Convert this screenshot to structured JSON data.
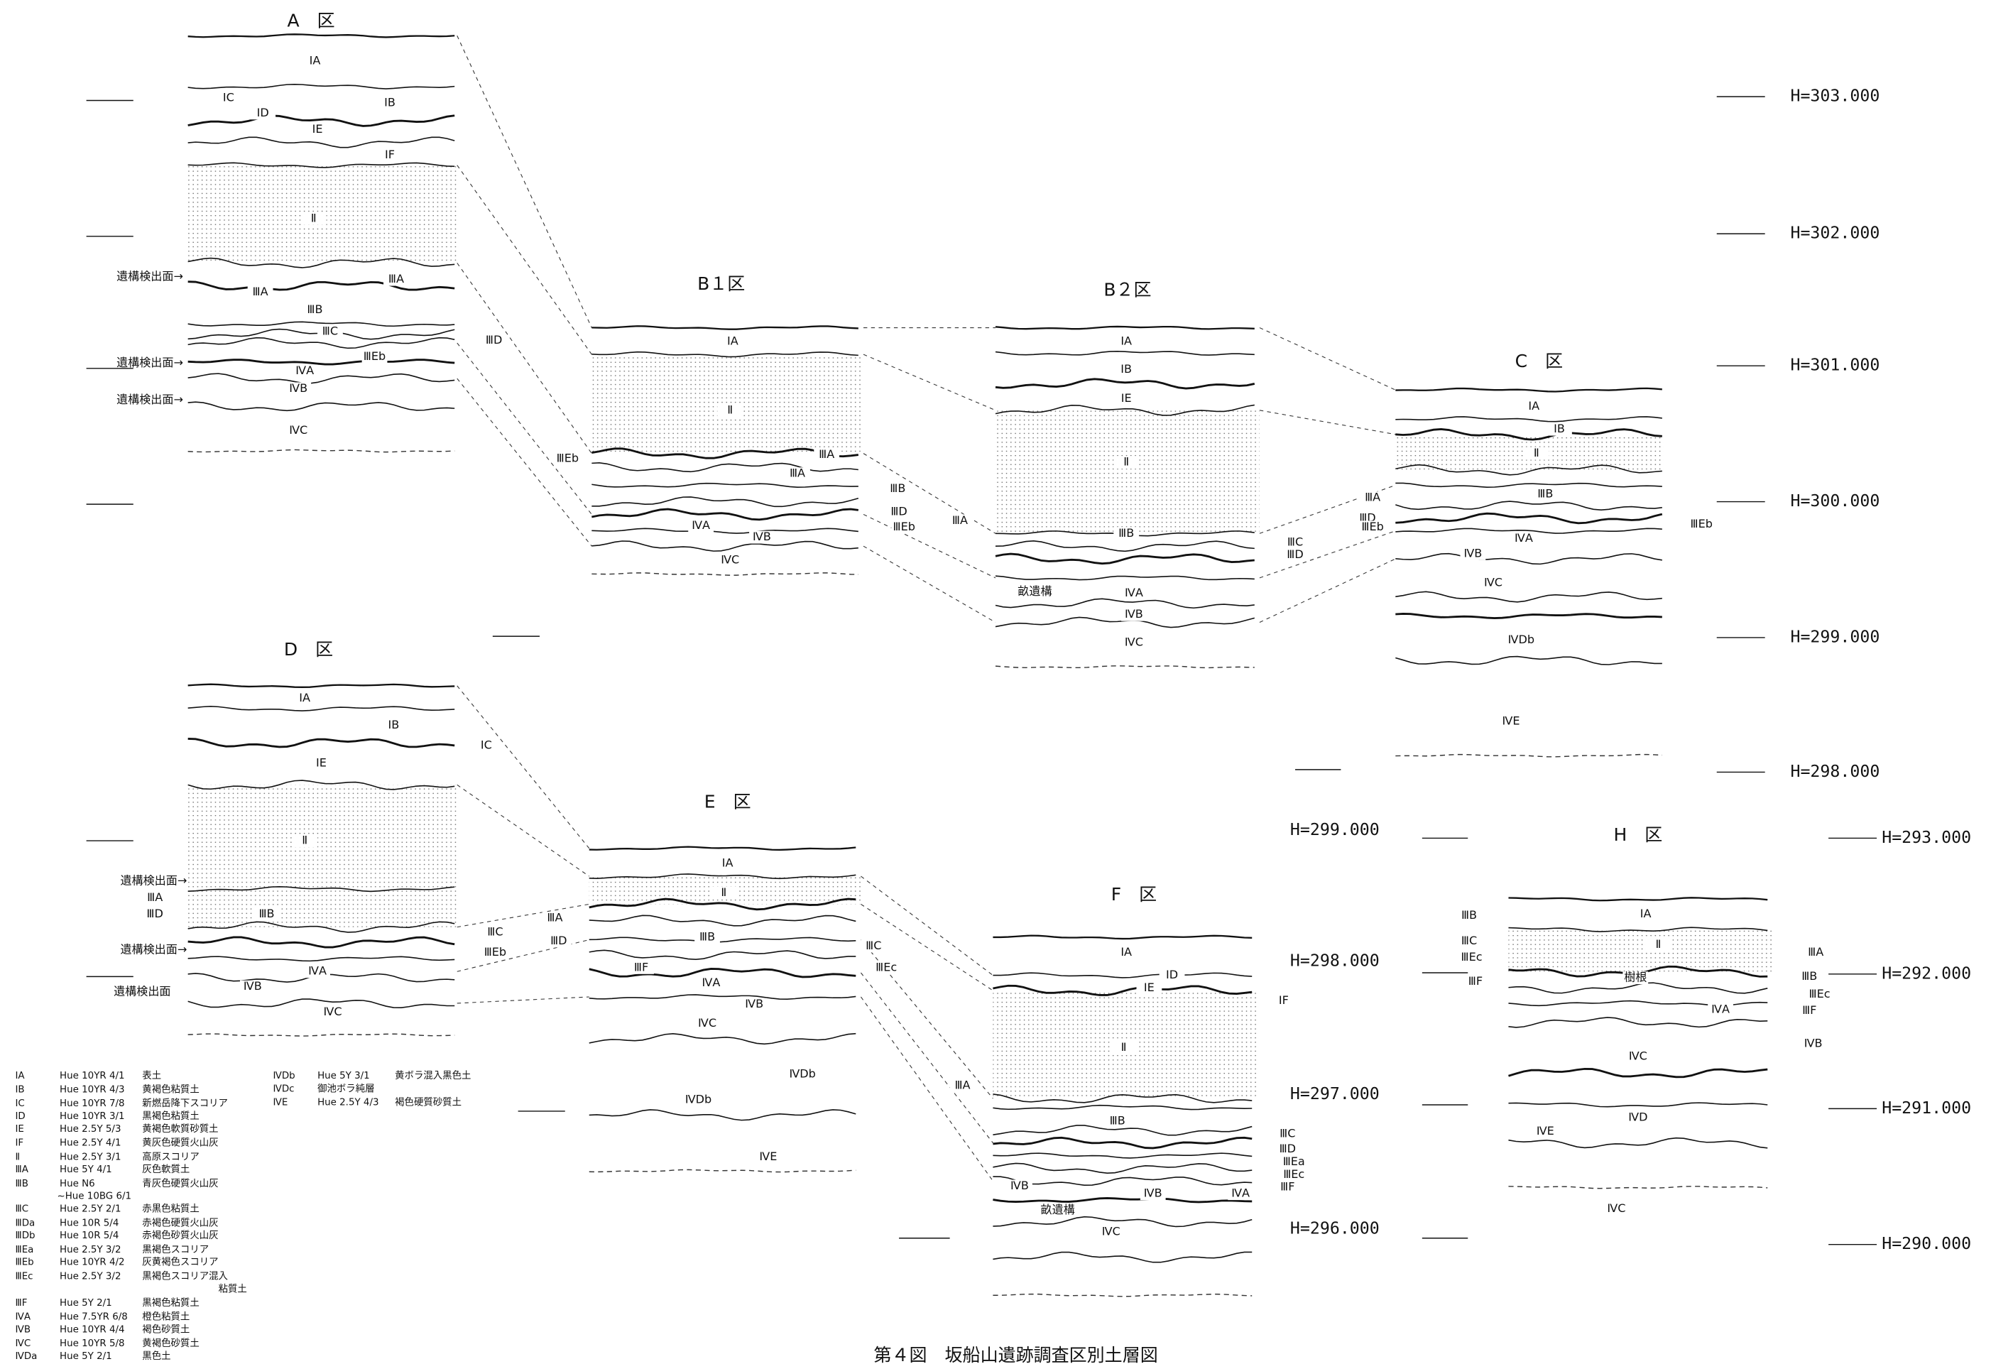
{
  "title": "第４図　坂船山遺跡調査区別土層図",
  "sections": [
    {
      "name": "A　区",
      "layers": [
        "ⅠA",
        "ⅠC",
        "ⅠB",
        "ⅠD",
        "ⅠE",
        "ⅠF",
        "Ⅱ",
        "ⅢA",
        "ⅢA",
        "ⅢB",
        "ⅢC",
        "ⅢD",
        "ⅢEb",
        "ⅣA",
        "ⅣB",
        "ⅣC"
      ],
      "notes": [
        "遺構検出面→",
        "遺構検出面→",
        "遺構検出面→"
      ]
    },
    {
      "name": "B１区",
      "layers": [
        "ⅠA",
        "Ⅱ",
        "ⅢA",
        "ⅢA",
        "ⅢB",
        "ⅢD",
        "ⅢEb",
        "ⅢEb",
        "ⅣA",
        "ⅣB",
        "ⅣC"
      ]
    },
    {
      "name": "B２区",
      "layers": [
        "ⅠA",
        "ⅠB",
        "ⅠE",
        "Ⅱ",
        "ⅢA",
        "ⅢB",
        "ⅢC",
        "ⅢD",
        "畝遺構",
        "ⅣA",
        "ⅣB",
        "ⅣC"
      ]
    },
    {
      "name": "C　区",
      "layers": [
        "ⅠA",
        "ⅠB",
        "Ⅱ",
        "ⅢA",
        "ⅢB",
        "ⅢD",
        "ⅢEb",
        "ⅢEb",
        "ⅣA",
        "ⅣB",
        "ⅣC",
        "ⅣDb",
        "ⅣE"
      ]
    },
    {
      "name": "D　区",
      "layers": [
        "ⅠA",
        "ⅠB",
        "ⅠC",
        "ⅠE",
        "Ⅱ",
        "ⅢA",
        "ⅢD",
        "ⅢB",
        "ⅢC",
        "ⅢEb",
        "ⅣA",
        "ⅣB",
        "ⅣC"
      ],
      "notes": [
        "遺構検出面→",
        "遺構検出面→",
        "遺構検出面"
      ]
    },
    {
      "name": "E　区",
      "layers": [
        "ⅠA",
        "Ⅱ",
        "ⅢA",
        "ⅢB",
        "ⅢD",
        "ⅢC",
        "ⅢEc",
        "ⅢF",
        "ⅣA",
        "ⅣB",
        "ⅣC",
        "ⅣDb",
        "ⅣDb",
        "ⅣE"
      ]
    },
    {
      "name": "F　区",
      "layers": [
        "ⅠA",
        "ⅠD",
        "ⅠE",
        "ⅠF",
        "Ⅱ",
        "ⅢA",
        "ⅢB",
        "ⅢC",
        "ⅢD",
        "ⅢEa",
        "ⅢEc",
        "ⅢF",
        "ⅣB",
        "畝遺構",
        "ⅣB",
        "ⅣA",
        "ⅣC"
      ]
    },
    {
      "name": "H　区",
      "layers": [
        "ⅠA",
        "Ⅱ",
        "ⅢB",
        "ⅢC",
        "ⅢEc",
        "ⅢF",
        "樹根",
        "ⅢA",
        "ⅢB",
        "ⅢEc",
        "ⅢF",
        "ⅣA",
        "ⅣB",
        "ⅣC",
        "ⅣD",
        "ⅣE",
        "ⅣC"
      ]
    }
  ],
  "elevations": [
    "H=303.000",
    "H=302.000",
    "H=301.000",
    "H=300.000",
    "H=299.000",
    "H=298.000",
    "H=299.000",
    "H=298.000",
    "H=297.000",
    "H=296.000",
    "H=293.000",
    "H=292.000",
    "H=291.000",
    "H=290.000"
  ],
  "legend": [
    {
      "code": "ⅠA",
      "hue": "Hue 10YR 4/1",
      "desc": "表土"
    },
    {
      "code": "ⅠB",
      "hue": "Hue 10YR 4/3",
      "desc": "黄褐色粘質土"
    },
    {
      "code": "ⅠC",
      "hue": "Hue 10YR 7/8",
      "desc": "新燃岳降下スコリア"
    },
    {
      "code": "ⅠD",
      "hue": "Hue 10YR 3/1",
      "desc": "黒褐色粘質土"
    },
    {
      "code": "ⅠE",
      "hue": "Hue 2.5Y 5/3",
      "desc": "黄褐色軟質砂質土"
    },
    {
      "code": "ⅠF",
      "hue": "Hue 2.5Y 4/1",
      "desc": "黄灰色硬質火山灰"
    },
    {
      "code": "Ⅱ",
      "hue": "Hue 2.5Y 3/1",
      "desc": "高原スコリア"
    },
    {
      "code": "ⅢA",
      "hue": "Hue 5Y 4/1",
      "desc": "灰色軟質土"
    },
    {
      "code": "ⅢB",
      "hue": "Hue N6",
      "desc": "青灰色硬質火山灰",
      "note": "~Hue 10BG 6/1"
    },
    {
      "code": "ⅢC",
      "hue": "Hue 2.5Y 2/1",
      "desc": "赤黒色粘質土"
    },
    {
      "code": "ⅢDa",
      "hue": "Hue 10R 5/4",
      "desc": "赤褐色硬質火山灰"
    },
    {
      "code": "ⅢDb",
      "hue": "Hue 10R 5/4",
      "desc": "赤褐色砂質火山灰"
    },
    {
      "code": "ⅢEa",
      "hue": "Hue 2.5Y 3/2",
      "desc": "黒褐色スコリア"
    },
    {
      "code": "ⅢEb",
      "hue": "Hue 10YR 4/2",
      "desc": "灰黄褐色スコリア"
    },
    {
      "code": "ⅢEc",
      "hue": "Hue 2.5Y 3/2",
      "desc": "黒褐色スコリア混入",
      "note": "粘質土"
    },
    {
      "code": "ⅢF",
      "hue": "Hue 5Y 2/1",
      "desc": "黒褐色粘質土"
    },
    {
      "code": "ⅣA",
      "hue": "Hue 7.5YR 6/8",
      "desc": "橙色粘質土"
    },
    {
      "code": "ⅣB",
      "hue": "Hue 10YR 4/4",
      "desc": "褐色砂質土"
    },
    {
      "code": "ⅣC",
      "hue": "Hue 10YR 5/8",
      "desc": "黄褐色砂質土"
    },
    {
      "code": "ⅣDa",
      "hue": "Hue 5Y 2/1",
      "desc": "黒色土"
    },
    {
      "code": "ⅣDb",
      "hue": "Hue 5Y 3/1",
      "desc": "黄ボラ混入黒色土"
    },
    {
      "code": "ⅣDc",
      "desc": "御池ボラ純層"
    },
    {
      "code": "ⅣE",
      "hue": "Hue 2.5Y 4/3",
      "desc": "褐色硬質砂質土"
    }
  ]
}
